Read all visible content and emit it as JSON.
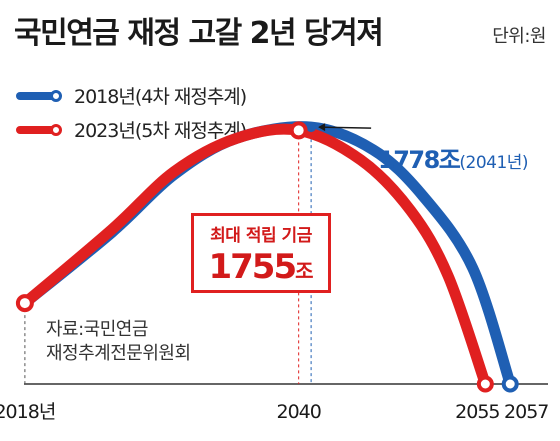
{
  "header": {
    "title": "국민연금 재정 고갈 2년 당겨져",
    "unit": "단위:원"
  },
  "legend": [
    {
      "label": "2018년(4차 재정추계)",
      "color": "#1f5fb3"
    },
    {
      "label": "2023년(5차 재정추계)",
      "color": "#e02020"
    }
  ],
  "source": {
    "line1": "자료:국민연금",
    "line2": "재정추계전문위원회"
  },
  "annotations": {
    "max_label": "최대 적립 기금",
    "max_value": "1755",
    "max_unit": "조",
    "peak_2018_value": "1778조",
    "peak_2018_year": "(2041년)"
  },
  "chart_data": {
    "type": "line",
    "title": "국민연금 재정 고갈 2년 당겨져",
    "unit": "단위:원",
    "x_ticks": [
      "2018년",
      "2040",
      "2055",
      "2057"
    ],
    "x_tick_values": [
      2018,
      2040,
      2055,
      2057
    ],
    "xlim": [
      2016,
      2061
    ],
    "ylim": [
      0,
      2000
    ],
    "series": [
      {
        "name": "2018년(4차 재정추계)",
        "color": "#1f5fb3",
        "points": [
          [
            2018,
            560
          ],
          [
            2025,
            1050
          ],
          [
            2030,
            1450
          ],
          [
            2035,
            1700
          ],
          [
            2041,
            1778
          ],
          [
            2046,
            1620
          ],
          [
            2050,
            1300
          ],
          [
            2054,
            800
          ],
          [
            2057,
            0
          ]
        ]
      },
      {
        "name": "2023년(5차 재정추계)",
        "color": "#e02020",
        "points": [
          [
            2018,
            560
          ],
          [
            2025,
            1070
          ],
          [
            2030,
            1470
          ],
          [
            2035,
            1700
          ],
          [
            2040,
            1755
          ],
          [
            2045,
            1550
          ],
          [
            2049,
            1200
          ],
          [
            2052,
            750
          ],
          [
            2055,
            0
          ]
        ]
      }
    ],
    "annotations": [
      {
        "text": "최대 적립 기금 1755조",
        "x": 2040,
        "y": 1755
      },
      {
        "text": "1778조(2041년)",
        "x": 2041,
        "y": 1778
      }
    ]
  }
}
